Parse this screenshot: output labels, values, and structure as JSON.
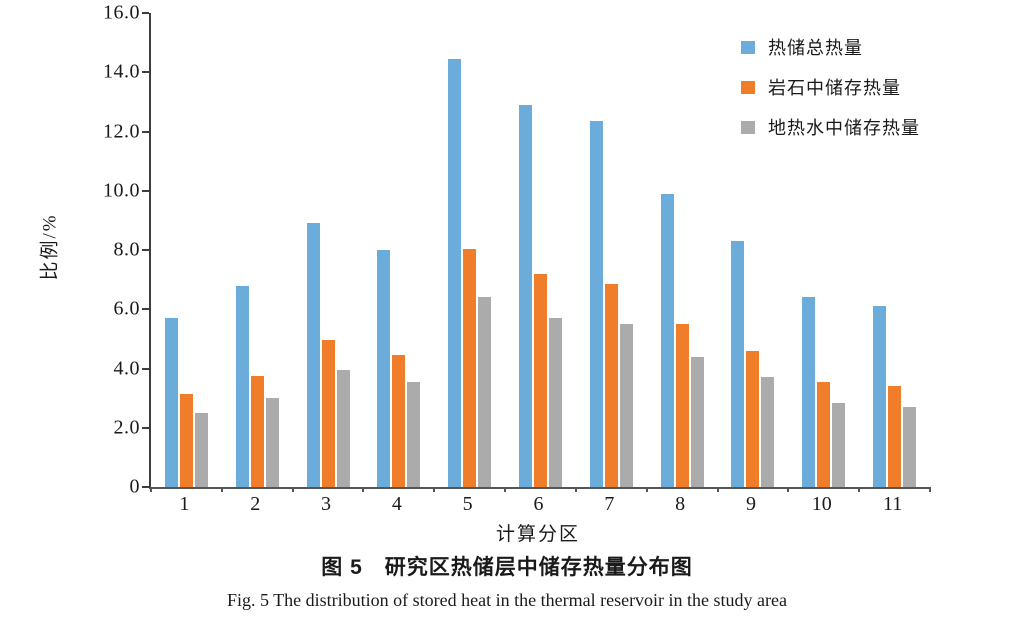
{
  "figure": {
    "caption_zh": "图 5　研究区热储层中储存热量分布图",
    "caption_en": "Fig. 5   The distribution of stored heat in the thermal reservoir in the study area"
  },
  "chart_data": {
    "type": "bar",
    "categories": [
      "1",
      "2",
      "3",
      "4",
      "5",
      "6",
      "7",
      "8",
      "9",
      "10",
      "11"
    ],
    "series": [
      {
        "name": "热储总热量",
        "color": "#6CACDB",
        "values": [
          5.7,
          6.8,
          8.9,
          8.0,
          14.45,
          12.9,
          12.35,
          9.9,
          8.3,
          6.4,
          6.1
        ]
      },
      {
        "name": "岩石中储存热量",
        "color": "#EF7D29",
        "values": [
          3.15,
          3.75,
          4.95,
          4.45,
          8.05,
          7.2,
          6.85,
          5.5,
          4.6,
          3.55,
          3.4
        ]
      },
      {
        "name": "地热水中储存热量",
        "color": "#ABABAB",
        "values": [
          2.5,
          3.0,
          3.95,
          3.55,
          6.4,
          5.7,
          5.5,
          4.4,
          3.7,
          2.85,
          2.7
        ]
      }
    ],
    "xlabel": "计算分区",
    "ylabel": "比例/%",
    "ylim": [
      0,
      16
    ],
    "ytick_step": 2,
    "ytick_labels": [
      "0",
      "2.0",
      "4.0",
      "6.0",
      "8.0",
      "10.0",
      "12.0",
      "14.0",
      "16.0"
    ],
    "grid": false,
    "legend_position": "top-right"
  }
}
